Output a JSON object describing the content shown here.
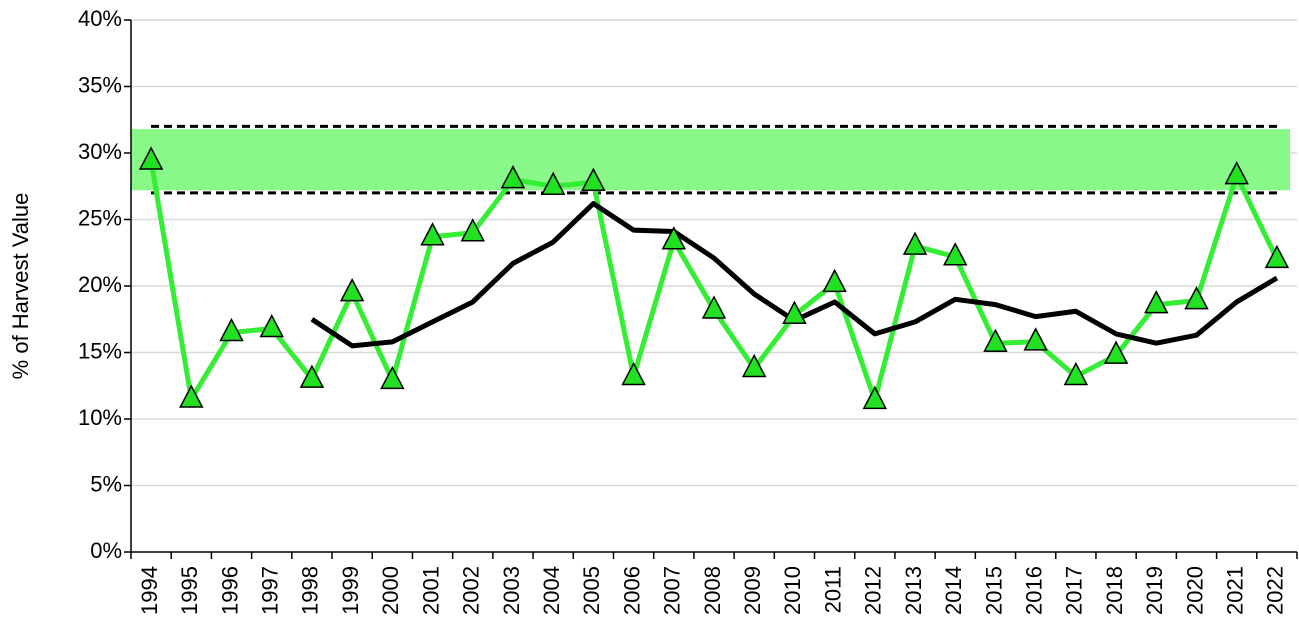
{
  "chart_data": {
    "type": "line",
    "y_label": "% of Harvest Value",
    "categories": [
      "1994",
      "1995",
      "1996",
      "1997",
      "1998",
      "1999",
      "2000",
      "2001",
      "2002",
      "2003",
      "2004",
      "2005",
      "2006",
      "2007",
      "2008",
      "2009",
      "2010",
      "2011",
      "2012",
      "2013",
      "2014",
      "2015",
      "2016",
      "2017",
      "2018",
      "2019",
      "2020",
      "2021",
      "2022"
    ],
    "series": [
      {
        "color": "#33ee33",
        "marker": "triangle",
        "marker_color": "#22e022",
        "values": [
          29.4,
          11.5,
          16.5,
          16.8,
          13.0,
          19.5,
          12.9,
          23.7,
          24.0,
          28.0,
          27.5,
          27.8,
          13.2,
          23.4,
          18.2,
          13.8,
          17.8,
          20.2,
          11.4,
          23.0,
          22.2,
          15.7,
          15.8,
          13.2,
          14.8,
          18.6,
          18.9,
          28.3,
          22.0
        ]
      },
      {
        "color": "#000000",
        "values": [
          null,
          null,
          null,
          null,
          17.5,
          15.5,
          15.8,
          17.3,
          18.8,
          21.7,
          23.3,
          26.2,
          24.2,
          24.1,
          22.1,
          19.4,
          17.4,
          18.8,
          16.4,
          17.3,
          19.0,
          18.6,
          17.7,
          18.1,
          16.4,
          15.7,
          16.3,
          18.8,
          20.6
        ]
      }
    ],
    "band": [
      27.2,
      31.8
    ],
    "band_color": "#88f888",
    "reference_lines": [
      27,
      32
    ],
    "ylim": [
      0,
      40
    ],
    "yticks": [
      {
        "value": 0,
        "label": "0%"
      },
      {
        "value": 5,
        "label": "5%"
      },
      {
        "value": 10,
        "label": "10%"
      },
      {
        "value": 15,
        "label": "15%"
      },
      {
        "value": 20,
        "label": "20%"
      },
      {
        "value": 25,
        "label": "25%"
      },
      {
        "value": 30,
        "label": "30%"
      },
      {
        "value": 35,
        "label": "35%"
      },
      {
        "value": 40,
        "label": "40%"
      }
    ],
    "grid": true
  }
}
